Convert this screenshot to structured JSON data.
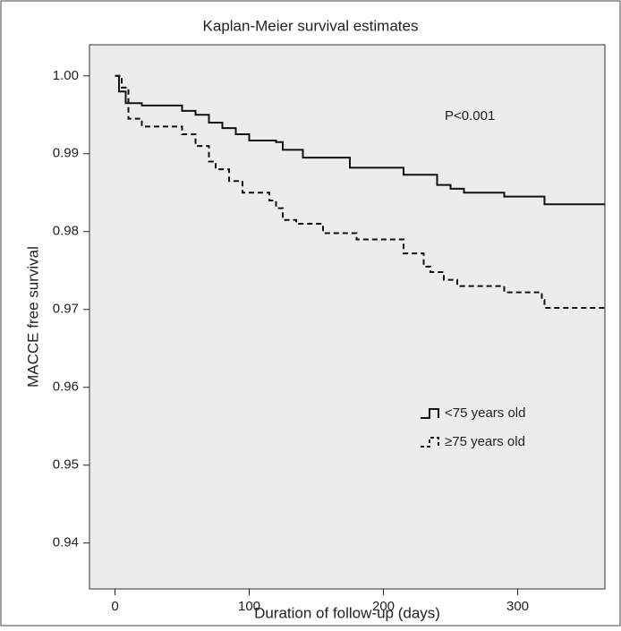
{
  "chart_data": {
    "type": "step",
    "title": "Kaplan-Meier survival estimates",
    "xlabel": "Duration of follow-up (days)",
    "ylabel": "MACCE free survival",
    "annotation": "P<0.001",
    "xlim": [
      -19,
      365
    ],
    "xticks": [
      0,
      100,
      200,
      300
    ],
    "ylim": [
      0.9341,
      1.004
    ],
    "yticks": [
      0.94,
      0.95,
      0.96,
      0.97,
      0.98,
      0.99,
      {
        "value": 1,
        "label": "1.00"
      }
    ],
    "legend": "right",
    "series": [
      {
        "name": "<75 years old",
        "color": "#111111",
        "line_style": "solid",
        "x": [
          0,
          3,
          8,
          20,
          50,
          60,
          70,
          80,
          90,
          100,
          120,
          125,
          140,
          175,
          215,
          240,
          250,
          260,
          290,
          320
        ],
        "values": [
          1.0,
          0.998,
          0.9965,
          0.9962,
          0.9955,
          0.995,
          0.994,
          0.9933,
          0.9925,
          0.9917,
          0.9915,
          0.9905,
          0.9895,
          0.9882,
          0.9873,
          0.986,
          0.9855,
          0.985,
          0.9845,
          0.9835
        ]
      },
      {
        "name": "≥75 years old",
        "color": "#111111",
        "line_style": "dashed",
        "x": [
          0,
          5,
          10,
          20,
          50,
          60,
          70,
          75,
          85,
          95,
          115,
          120,
          125,
          135,
          155,
          180,
          215,
          230,
          235,
          245,
          255,
          290,
          318,
          320
        ],
        "values": [
          1.0,
          0.9985,
          0.9945,
          0.9935,
          0.9925,
          0.991,
          0.989,
          0.988,
          0.9865,
          0.985,
          0.984,
          0.983,
          0.9815,
          0.981,
          0.9798,
          0.979,
          0.9772,
          0.9755,
          0.9748,
          0.9738,
          0.973,
          0.9722,
          0.9712,
          0.9702
        ]
      }
    ]
  }
}
